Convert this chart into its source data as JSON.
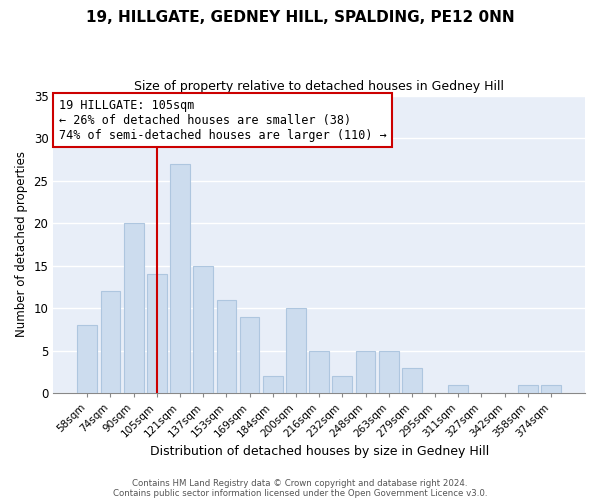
{
  "title": "19, HILLGATE, GEDNEY HILL, SPALDING, PE12 0NN",
  "subtitle": "Size of property relative to detached houses in Gedney Hill",
  "xlabel": "Distribution of detached houses by size in Gedney Hill",
  "ylabel": "Number of detached properties",
  "bar_labels": [
    "58sqm",
    "74sqm",
    "90sqm",
    "105sqm",
    "121sqm",
    "137sqm",
    "153sqm",
    "169sqm",
    "184sqm",
    "200sqm",
    "216sqm",
    "232sqm",
    "248sqm",
    "263sqm",
    "279sqm",
    "295sqm",
    "311sqm",
    "327sqm",
    "342sqm",
    "358sqm",
    "374sqm"
  ],
  "bar_heights": [
    8,
    12,
    20,
    14,
    27,
    15,
    11,
    9,
    2,
    10,
    5,
    2,
    5,
    5,
    3,
    0,
    1,
    0,
    0,
    1,
    1
  ],
  "bar_color": "#ccdcee",
  "bar_edge_color": "#aec6df",
  "vline_x_index": 3,
  "vline_color": "#cc0000",
  "annotation_line1": "19 HILLGATE: 105sqm",
  "annotation_line2": "← 26% of detached houses are smaller (38)",
  "annotation_line3": "74% of semi-detached houses are larger (110) →",
  "annotation_box_color": "#ffffff",
  "annotation_box_edge": "#cc0000",
  "ylim": [
    0,
    35
  ],
  "yticks": [
    0,
    5,
    10,
    15,
    20,
    25,
    30,
    35
  ],
  "footer_line1": "Contains HM Land Registry data © Crown copyright and database right 2024.",
  "footer_line2": "Contains public sector information licensed under the Open Government Licence v3.0.",
  "background_color": "#ffffff",
  "plot_background": "#e8eef8",
  "grid_color": "#ffffff",
  "title_fontsize": 11,
  "subtitle_fontsize": 9
}
